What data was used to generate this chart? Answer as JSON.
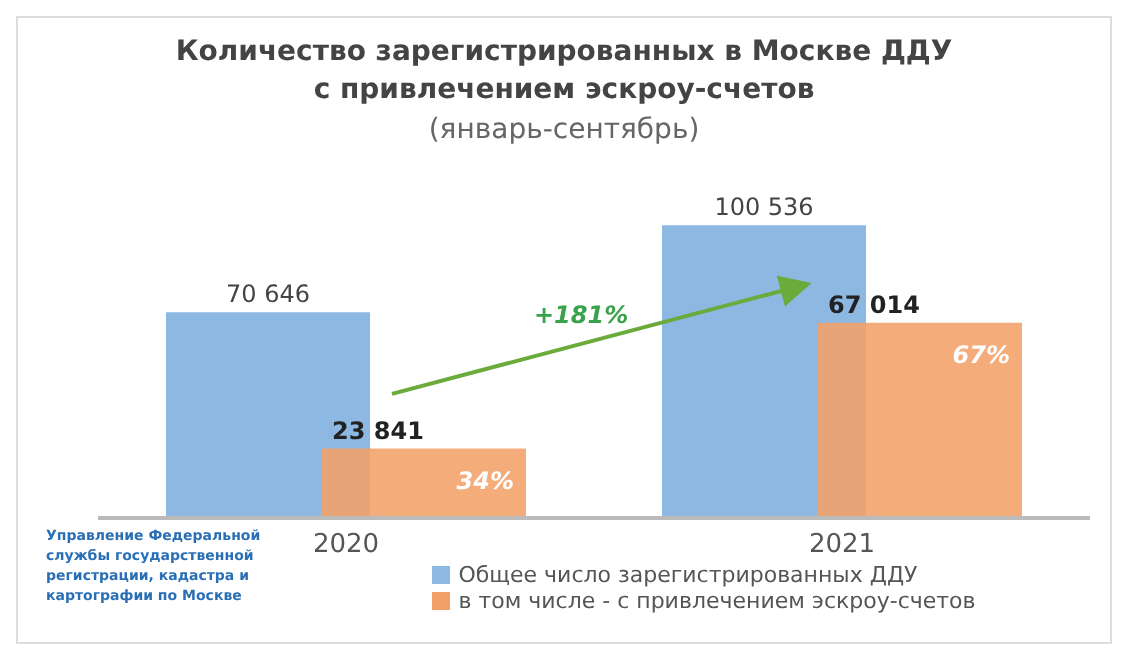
{
  "chart_data": {
    "type": "bar",
    "title": "Количество зарегистрированных в Москве ДДУ\nс привлечением эскроу-счетов",
    "subtitle": "(январь-сентябрь)",
    "categories": [
      "2020",
      "2021"
    ],
    "series": [
      {
        "name": "Общее число зарегистрированных ДДУ",
        "color": "#8db8e2",
        "values": [
          70646,
          100536
        ],
        "value_labels": [
          "70 646",
          "100 536"
        ]
      },
      {
        "name": "в том числе - с привлечением эскроу-счетов",
        "color": "#f2a068",
        "values": [
          23841,
          67014
        ],
        "value_labels": [
          "23 841",
          "67 014"
        ]
      }
    ],
    "annotations": [
      "34%",
      "67%",
      "+181%",
      "Управление Федеральной службы государственной регистрации, кадастра и картографии по Москве"
    ],
    "legend": "bottom",
    "grid": false
  }
}
